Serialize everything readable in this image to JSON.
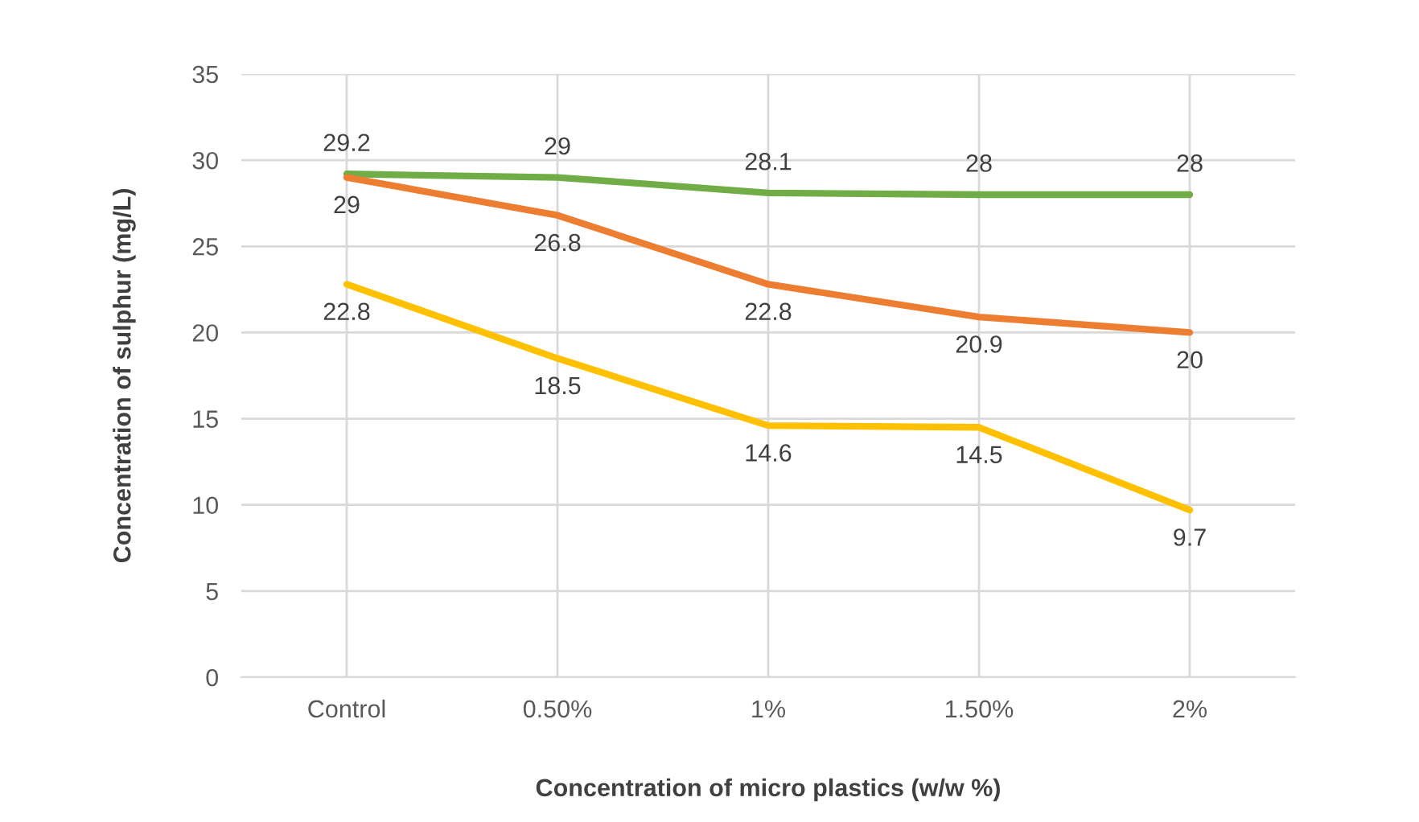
{
  "chart_data": {
    "type": "line",
    "xlabel": "Concentration of micro plastics (w/w %)",
    "ylabel": "Concentration of sulphur (mg/L)",
    "categories": [
      "Control",
      "0.50%",
      "1%",
      "1.50%",
      "2%"
    ],
    "series": [
      {
        "color": "#70ad47",
        "values": [
          29.2,
          29,
          28.1,
          28,
          28
        ]
      },
      {
        "color": "#ed7d31",
        "values": [
          29,
          26.8,
          22.8,
          20.9,
          20
        ]
      },
      {
        "color": "#ffc000",
        "values": [
          22.8,
          18.5,
          14.6,
          14.5,
          9.7
        ]
      }
    ],
    "data_labels": true,
    "ylim": [
      0,
      35
    ],
    "yticks": [
      0,
      5,
      10,
      15,
      20,
      25,
      30,
      35
    ],
    "grid": true,
    "legend": false,
    "marker": "none",
    "line_style": "solid"
  }
}
